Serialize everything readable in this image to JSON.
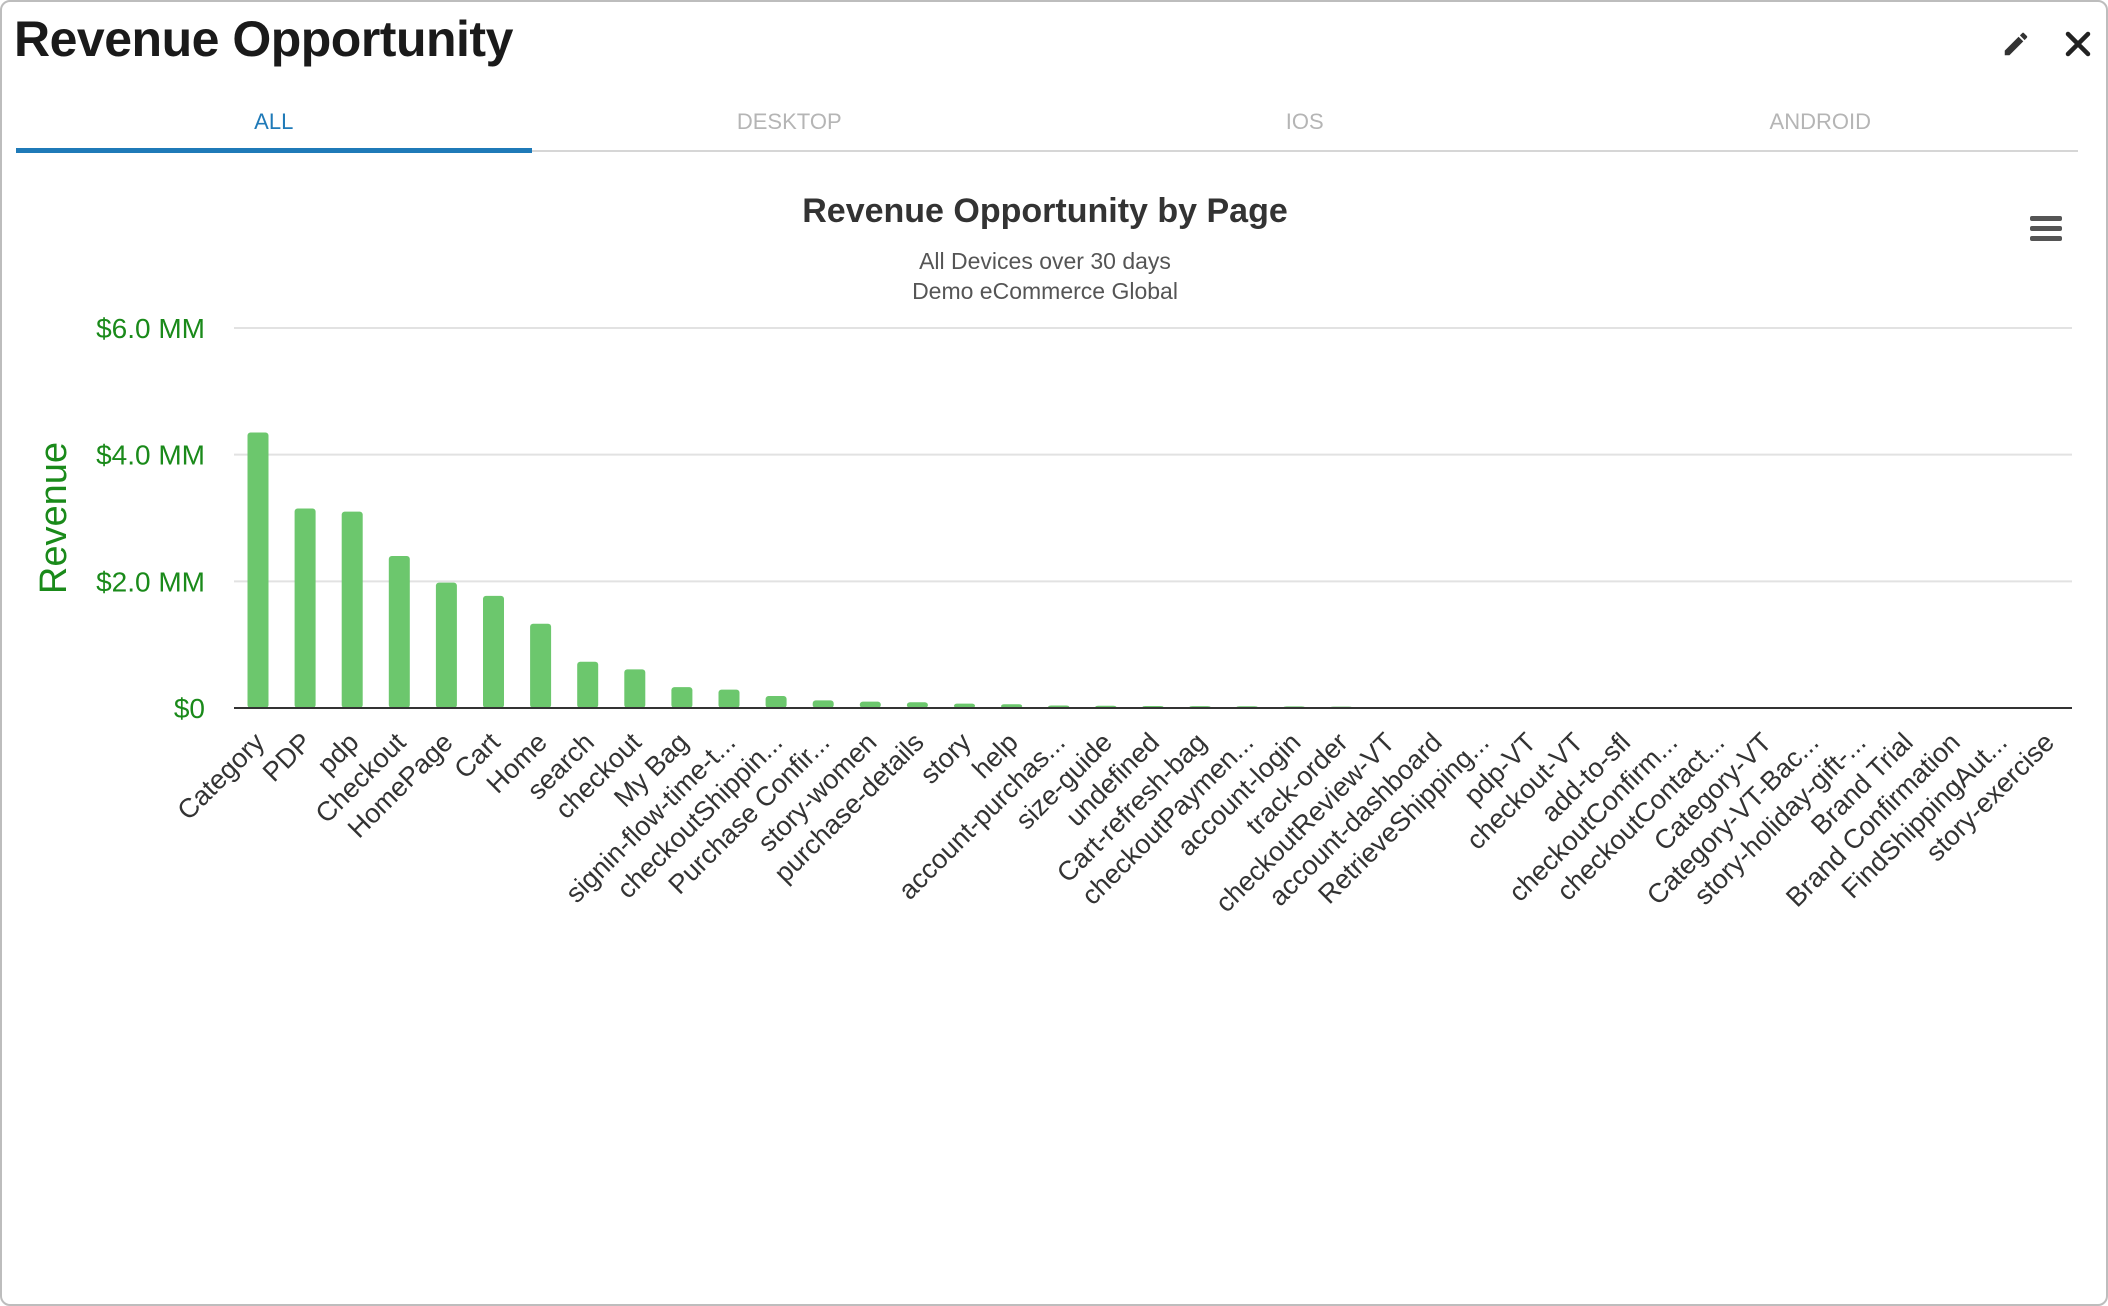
{
  "window": {
    "title": "Revenue Opportunity",
    "edit_icon": "pencil-icon",
    "close_icon": "close-icon"
  },
  "tabs": [
    {
      "label": "ALL",
      "active": true
    },
    {
      "label": "DESKTOP",
      "active": false
    },
    {
      "label": "IOS",
      "active": false
    },
    {
      "label": "ANDROID",
      "active": false
    }
  ],
  "chart_menu_icon": "hamburger-menu-icon",
  "colors": {
    "bar": "#6cc76d",
    "axis_text": "#1a8a1a",
    "active_tab": "#1f7ab8"
  },
  "chart_data": {
    "type": "bar",
    "title": "Revenue Opportunity by Page",
    "subtitle_lines": [
      "All Devices over 30 days",
      "Demo eCommerce Global"
    ],
    "xlabel": "",
    "ylabel": "Revenue",
    "ylim": [
      0,
      6000000
    ],
    "yticks": [
      {
        "value": 0,
        "label": "$0"
      },
      {
        "value": 2000000,
        "label": "$2.0 MM"
      },
      {
        "value": 4000000,
        "label": "$4.0 MM"
      },
      {
        "value": 6000000,
        "label": "$6.0 MM"
      }
    ],
    "grid": true,
    "legend": "none",
    "categories": [
      "Category",
      "PDP",
      "pdp",
      "Checkout",
      "HomePage",
      "Cart",
      "Home",
      "search",
      "checkout",
      "My Bag",
      "signin-flow-time-t...",
      "checkoutShippin...",
      "Purchase Confir...",
      "story-women",
      "purchase-details",
      "story",
      "help",
      "account-purchas...",
      "size-guide",
      "undefined",
      "Cart-refresh-bag",
      "checkoutPaymen...",
      "account-login",
      "track-order",
      "checkoutReview-VT",
      "account-dashboard",
      "RetrieveShipping...",
      "pdp-VT",
      "checkout-VT",
      "add-to-sfl",
      "checkoutConfirm...",
      "checkoutContact...",
      "Category-VT",
      "Category-VT-Bac...",
      "story-holiday-gift-...",
      "Brand Trial",
      "Brand Confirmation",
      "FindShippingAut...",
      "story-exercise"
    ],
    "values": [
      4350000,
      3150000,
      3100000,
      2400000,
      1980000,
      1770000,
      1330000,
      730000,
      610000,
      330000,
      290000,
      190000,
      120000,
      100000,
      90000,
      70000,
      60000,
      40000,
      35000,
      32000,
      30000,
      28000,
      26000,
      22000,
      3000,
      2000,
      2000,
      1500,
      1500,
      1000,
      1000,
      1000,
      800,
      800,
      600,
      500,
      500,
      400,
      300
    ]
  }
}
